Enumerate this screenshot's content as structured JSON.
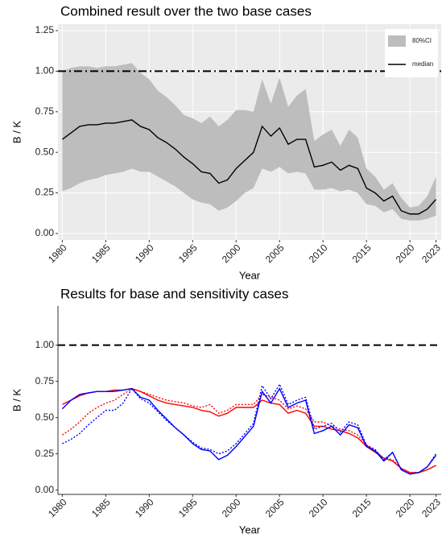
{
  "chart_data": [
    {
      "type": "line",
      "title": "Combined result over the two base cases",
      "x_label": "Year",
      "y_label": "B / K",
      "x": [
        1980,
        1981,
        1982,
        1983,
        1984,
        1985,
        1986,
        1987,
        1988,
        1989,
        1990,
        1991,
        1992,
        1993,
        1994,
        1995,
        1996,
        1997,
        1998,
        1999,
        2000,
        2001,
        2002,
        2003,
        2004,
        2005,
        2006,
        2007,
        2008,
        2009,
        2010,
        2011,
        2012,
        2013,
        2014,
        2015,
        2016,
        2017,
        2018,
        2019,
        2020,
        2021,
        2022,
        2023
      ],
      "band": {
        "name": "80%CI",
        "color": "#bdbdbd",
        "lower": [
          0.26,
          0.28,
          0.31,
          0.33,
          0.34,
          0.36,
          0.37,
          0.38,
          0.4,
          0.38,
          0.38,
          0.35,
          0.32,
          0.29,
          0.25,
          0.21,
          0.19,
          0.18,
          0.14,
          0.16,
          0.2,
          0.25,
          0.28,
          0.4,
          0.38,
          0.41,
          0.37,
          0.38,
          0.37,
          0.27,
          0.27,
          0.28,
          0.26,
          0.27,
          0.25,
          0.18,
          0.17,
          0.13,
          0.15,
          0.09,
          0.08,
          0.08,
          0.09,
          0.11
        ],
        "upper": [
          1.0,
          1.02,
          1.03,
          1.03,
          1.02,
          1.03,
          1.03,
          1.04,
          1.05,
          0.99,
          0.95,
          0.88,
          0.84,
          0.79,
          0.73,
          0.71,
          0.68,
          0.72,
          0.66,
          0.7,
          0.76,
          0.76,
          0.75,
          0.95,
          0.8,
          0.96,
          0.78,
          0.85,
          0.89,
          0.57,
          0.61,
          0.64,
          0.54,
          0.64,
          0.59,
          0.4,
          0.35,
          0.27,
          0.31,
          0.22,
          0.16,
          0.17,
          0.23,
          0.35
        ]
      },
      "series": [
        {
          "name": "median",
          "color": "#000000",
          "dash": "solid",
          "values": [
            0.58,
            0.62,
            0.66,
            0.67,
            0.67,
            0.68,
            0.68,
            0.69,
            0.7,
            0.66,
            0.64,
            0.59,
            0.56,
            0.52,
            0.47,
            0.43,
            0.38,
            0.37,
            0.31,
            0.33,
            0.4,
            0.45,
            0.5,
            0.66,
            0.6,
            0.65,
            0.55,
            0.58,
            0.58,
            0.41,
            0.42,
            0.44,
            0.39,
            0.42,
            0.4,
            0.28,
            0.25,
            0.2,
            0.23,
            0.14,
            0.12,
            0.12,
            0.15,
            0.21
          ]
        }
      ],
      "reference_line": 1,
      "reference_dash": "dashdot",
      "xlim": [
        1979.5,
        2023.6
      ],
      "ylim": [
        -0.04,
        1.29
      ],
      "xticks": [
        1980,
        1985,
        1990,
        1995,
        2000,
        2005,
        2010,
        2015,
        2020,
        2023
      ],
      "yticks": [
        {
          "value": 0,
          "label": "0.00"
        },
        {
          "value": 0.25,
          "label": "0.25"
        },
        {
          "value": 0.5,
          "label": "0.50"
        },
        {
          "value": 0.75,
          "label": "0.75"
        },
        {
          "value": 1,
          "label": "1.00"
        },
        {
          "value": 1.25,
          "label": "1.25"
        }
      ],
      "grid": true,
      "background": "#ebebeb",
      "legend": "top-right"
    },
    {
      "type": "line",
      "title": "Results for base and sensitivity cases",
      "x_label": "Year",
      "y_label": "B / K",
      "x": [
        1980,
        1981,
        1982,
        1983,
        1984,
        1985,
        1986,
        1987,
        1988,
        1989,
        1990,
        1991,
        1992,
        1993,
        1994,
        1995,
        1996,
        1997,
        1998,
        1999,
        2000,
        2001,
        2002,
        2003,
        2004,
        2005,
        2006,
        2007,
        2008,
        2009,
        2010,
        2011,
        2012,
        2013,
        2014,
        2015,
        2016,
        2017,
        2018,
        2019,
        2020,
        2021,
        2022,
        2023
      ],
      "series": [
        {
          "color": "#ff0000",
          "dash": "solid",
          "values": [
            0.59,
            0.62,
            0.65,
            0.67,
            0.68,
            0.68,
            0.69,
            0.69,
            0.7,
            0.68,
            0.65,
            0.62,
            0.6,
            0.59,
            0.58,
            0.57,
            0.55,
            0.54,
            0.51,
            0.53,
            0.57,
            0.57,
            0.57,
            0.62,
            0.6,
            0.59,
            0.53,
            0.55,
            0.53,
            0.44,
            0.44,
            0.42,
            0.41,
            0.39,
            0.36,
            0.3,
            0.26,
            0.22,
            0.2,
            0.15,
            0.12,
            0.12,
            0.14,
            0.17
          ]
        },
        {
          "color": "#ff0000",
          "dash": "dotted",
          "values": [
            0.38,
            0.42,
            0.47,
            0.53,
            0.57,
            0.6,
            0.62,
            0.66,
            0.7,
            0.68,
            0.66,
            0.64,
            0.62,
            0.61,
            0.6,
            0.58,
            0.57,
            0.59,
            0.53,
            0.55,
            0.59,
            0.59,
            0.59,
            0.66,
            0.64,
            0.62,
            0.56,
            0.58,
            0.56,
            0.47,
            0.47,
            0.44,
            0.42,
            0.41,
            0.38,
            0.31,
            0.27,
            0.22,
            0.21,
            0.15,
            0.12,
            0.12,
            0.14,
            0.17
          ]
        },
        {
          "color": "#0000ff",
          "dash": "solid",
          "values": [
            0.56,
            0.62,
            0.66,
            0.67,
            0.68,
            0.68,
            0.68,
            0.69,
            0.7,
            0.64,
            0.62,
            0.55,
            0.49,
            0.43,
            0.38,
            0.32,
            0.28,
            0.27,
            0.21,
            0.24,
            0.3,
            0.37,
            0.44,
            0.68,
            0.6,
            0.7,
            0.57,
            0.6,
            0.62,
            0.39,
            0.41,
            0.44,
            0.38,
            0.45,
            0.43,
            0.3,
            0.27,
            0.2,
            0.26,
            0.14,
            0.11,
            0.12,
            0.16,
            0.24
          ]
        },
        {
          "color": "#0000ff",
          "dash": "dotted",
          "values": [
            0.32,
            0.35,
            0.39,
            0.45,
            0.5,
            0.55,
            0.55,
            0.6,
            0.7,
            0.63,
            0.6,
            0.54,
            0.48,
            0.43,
            0.38,
            0.33,
            0.29,
            0.28,
            0.25,
            0.27,
            0.32,
            0.39,
            0.46,
            0.72,
            0.63,
            0.73,
            0.59,
            0.62,
            0.64,
            0.42,
            0.44,
            0.46,
            0.4,
            0.47,
            0.45,
            0.31,
            0.28,
            0.21,
            0.26,
            0.14,
            0.11,
            0.12,
            0.16,
            0.25
          ]
        }
      ],
      "reference_line": 1,
      "reference_dash": "dashed",
      "xlim": [
        1979.5,
        2023.6
      ],
      "ylim": [
        -0.03,
        1.27
      ],
      "xticks": [
        1980,
        1985,
        1990,
        1995,
        2000,
        2005,
        2010,
        2015,
        2020,
        2023
      ],
      "yticks": [
        {
          "value": 0,
          "label": "0.00"
        },
        {
          "value": 0.25,
          "label": "0.25"
        },
        {
          "value": 0.5,
          "label": "0.50"
        },
        {
          "value": 0.75,
          "label": "0.75"
        },
        {
          "value": 1,
          "label": "1.00"
        }
      ],
      "grid": false,
      "background": "#ffffff"
    }
  ]
}
